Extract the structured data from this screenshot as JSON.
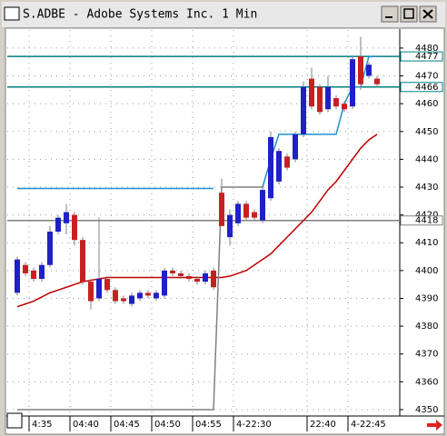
{
  "chart_data": {
    "type": "candlestick",
    "title": "S.ADBE - Adobe Systems Inc. 1 Min",
    "categories": [
      null,
      null,
      "4:35",
      null,
      null,
      null,
      null,
      "04:40",
      null,
      null,
      null,
      null,
      "04:45",
      null,
      null,
      null,
      null,
      "04:50",
      null,
      null,
      null,
      null,
      "04:55",
      null,
      null,
      null,
      null,
      "4-22:30",
      null,
      null,
      null,
      null,
      null,
      null,
      null,
      null,
      "22:40",
      null,
      null,
      null,
      null,
      "4-22:45",
      null,
      null,
      null
    ],
    "open": [
      4392,
      4402,
      4400,
      4397,
      4402,
      4414,
      4417,
      4420,
      4411,
      4396,
      4390,
      4397,
      4393,
      4390,
      4388,
      4390,
      4392,
      4390,
      4391,
      4400,
      4399,
      4398,
      4397,
      4396,
      4400,
      4428,
      4412,
      4417,
      4424,
      4421,
      4418,
      4426,
      4432,
      4441,
      4440,
      4449,
      4469,
      4466,
      4458,
      4462,
      4460,
      4459,
      4477,
      4470,
      4469
    ],
    "high": [
      4405,
      4403,
      4401,
      4403,
      4416,
      4420,
      4424,
      4421,
      4412,
      4397,
      4419,
      4398,
      4394,
      4391,
      4392,
      4393,
      4393,
      4393,
      4401,
      4401,
      4400,
      4399,
      4398,
      4400,
      4401,
      4433,
      4422,
      4425,
      4425,
      4422,
      4430,
      4450,
      4444,
      4442,
      4450,
      4468,
      4473,
      4467,
      4470,
      4463,
      4461,
      4477,
      4484,
      4475,
      4470
    ],
    "low": [
      4391,
      4398,
      4396,
      4396,
      4401,
      4413,
      4413,
      4409,
      4395,
      4386,
      4389,
      4392,
      4388,
      4388,
      4387,
      4389,
      4390,
      4389,
      4390,
      4398,
      4397,
      4396,
      4395,
      4395,
      4393,
      4416,
      4409,
      4416,
      4418,
      4418,
      4417,
      4425,
      4431,
      4436,
      4439,
      4448,
      4458,
      4456,
      4457,
      4458,
      4457,
      4458,
      4465,
      4469,
      4466
    ],
    "close": [
      4404,
      4399,
      4397,
      4402,
      4414,
      4419,
      4421,
      4411,
      4396,
      4389,
      4397,
      4393,
      4389,
      4389,
      4391,
      4392,
      4391,
      4392,
      4400,
      4399,
      4398,
      4397,
      4396,
      4399,
      4394,
      4416,
      4420,
      4424,
      4419,
      4419,
      4429,
      4448,
      4443,
      4437,
      4449,
      4466,
      4459,
      4457,
      4466,
      4459,
      4458,
      4476,
      4467,
      4474,
      4467
    ],
    "up_color": "#2020c8",
    "down_color": "#c82020",
    "lines": [
      {
        "color": "#c00000",
        "values": [
          4387,
          4388,
          4389,
          4390.5,
          4392,
          4393,
          4394,
          4395,
          4396,
          4396.5,
          4397,
          4397.5,
          4397.5,
          4397.5,
          4397.5,
          4397.5,
          4397.5,
          4397.5,
          4397.5,
          4397.5,
          4397.5,
          4397.5,
          4397.5,
          4397.5,
          4397.5,
          4397.5,
          4398,
          4399,
          4400,
          4402,
          4404,
          4406,
          4409,
          4412,
          4415,
          4418,
          4421,
          4425,
          4429,
          4432,
          4436,
          4440,
          4444,
          4447,
          4449
        ]
      },
      {
        "color": "#1e8fd0",
        "values": [
          4429.5,
          4429.5,
          4429.5,
          4429.5,
          4429.5,
          4429.5,
          4429.5,
          4429.5,
          4429.5,
          4429.5,
          4429.5,
          4429.5,
          4429.5,
          4429.5,
          4429.5,
          4429.5,
          4429.5,
          4429.5,
          4429.5,
          4429.5,
          4429.5,
          4429.5,
          4429.5,
          4429.5,
          4429.5,
          null,
          null,
          null,
          null,
          null,
          4430,
          4440,
          4449,
          4449,
          4449,
          4449,
          4449,
          4449,
          4449,
          4449,
          4460,
          4466,
          4466,
          4477,
          4477
        ]
      },
      {
        "color": "#808080",
        "values": [
          4350,
          4350,
          4350,
          4350,
          4350,
          4350,
          4350,
          4350,
          4350,
          4350,
          4350,
          4350,
          4350,
          4350,
          4350,
          4350,
          4350,
          4350,
          4350,
          4350,
          4350,
          4350,
          4350,
          4350,
          4350,
          4430,
          4430,
          4430,
          4430,
          4430,
          4430,
          null,
          null,
          null,
          null,
          null,
          null,
          null,
          null,
          null,
          null,
          null,
          null,
          null,
          null
        ]
      }
    ],
    "levels": [
      {
        "value": 4477,
        "color": "#008080"
      },
      {
        "value": 4466,
        "color": "#008080"
      },
      {
        "value": 4418,
        "color": "#808080"
      }
    ],
    "ylim": [
      4347.7,
      4486.5
    ],
    "yticks": [
      4350,
      4360,
      4370,
      4380,
      4390,
      4400,
      4410,
      4420,
      4430,
      4440,
      4450,
      4460,
      4470,
      4480
    ],
    "grid": true
  }
}
